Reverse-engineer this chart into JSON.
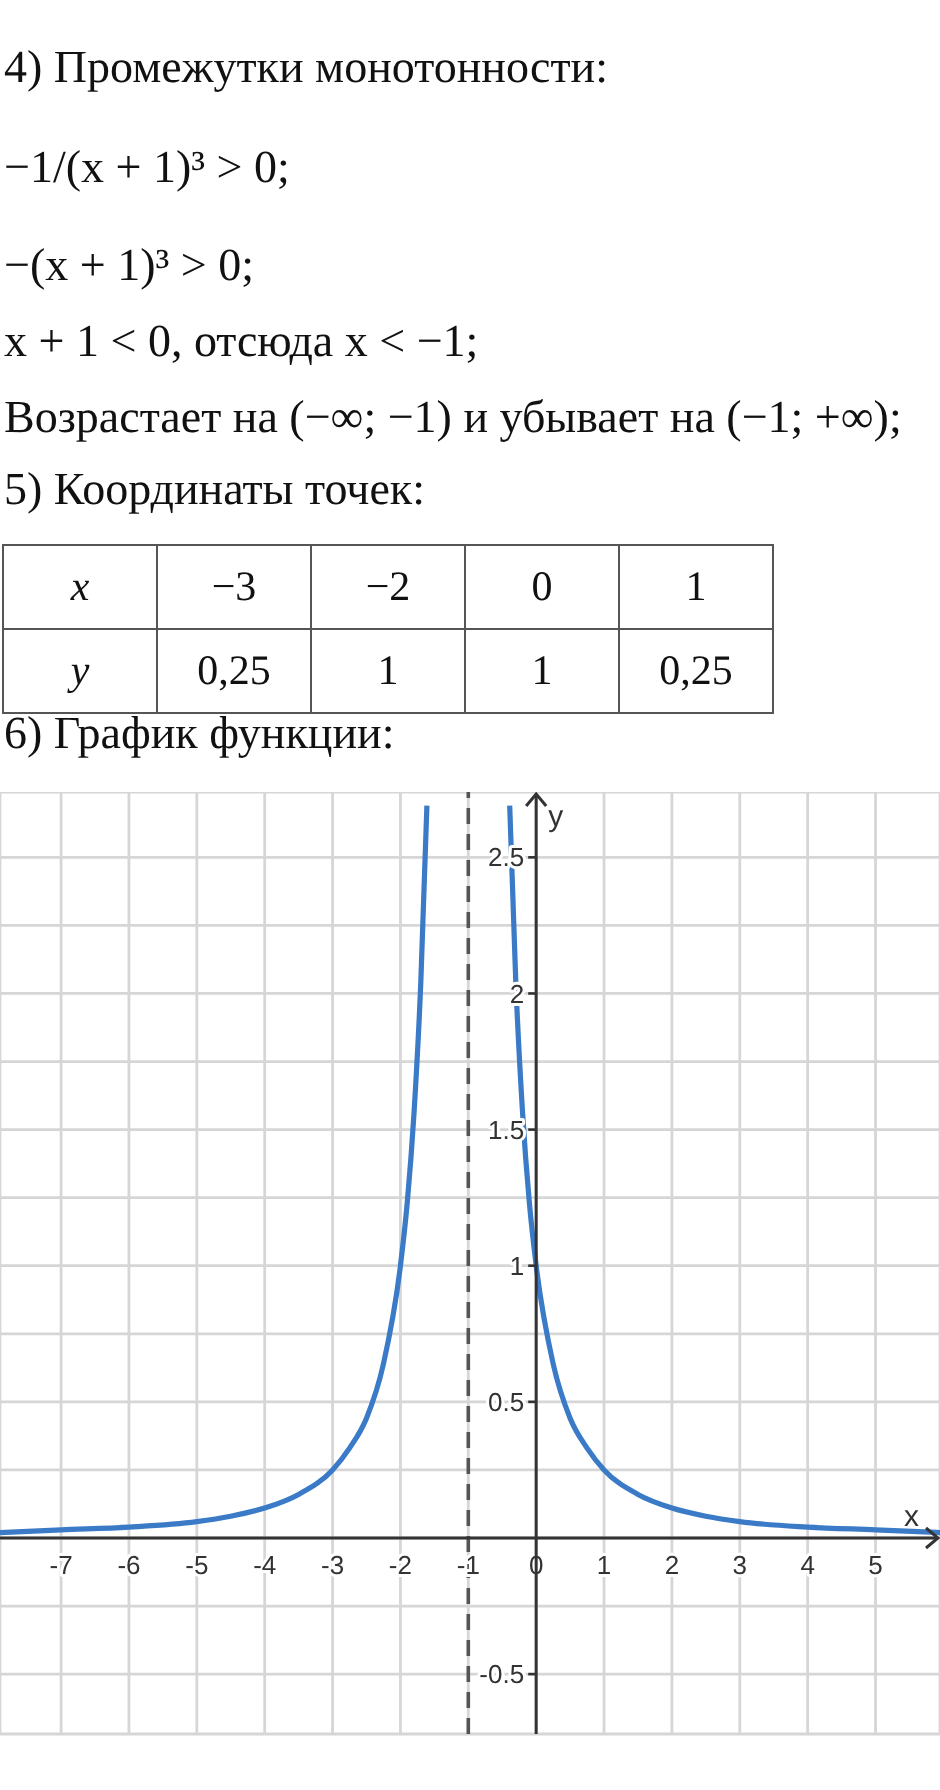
{
  "chart_data": [
    {
      "type": "other",
      "title": "4) Промежутки монотонности:",
      "annotations": [
        "−1/(x + 1)³ > 0;",
        "−(x + 1)³ > 0;",
        "x + 1 < 0, отсюда x < −1;",
        "Возрастает на (−∞; −1) и убывает на (−1; +∞);"
      ]
    },
    {
      "type": "other",
      "title": "5) Координаты точек:",
      "annotations": [
        "x",
        "−3",
        "−2",
        "0",
        "1",
        "y",
        "0,25",
        "1",
        "1",
        "0,25"
      ]
    },
    {
      "type": "line",
      "title": "6) График функции:",
      "xlabel": "x",
      "ylabel": "y",
      "x": [
        -7.9,
        -7,
        -6,
        -5,
        -4.5,
        -4,
        -3.5,
        -3,
        -2.75,
        -2.5,
        -2.25,
        -2,
        -1.9,
        -1.8,
        -1.7,
        -1.61,
        -1,
        -0.39,
        -0.3,
        -0.2,
        -0.1,
        0,
        0.25,
        0.5,
        0.75,
        1,
        1.5,
        2,
        2.5,
        3,
        4,
        5,
        5.95
      ],
      "series": [
        {
          "color": "#3a7ac7",
          "values": [
            0.02,
            0.03,
            0.04,
            0.06,
            0.08,
            0.11,
            0.16,
            0.25,
            0.33,
            0.44,
            0.64,
            1,
            1.23,
            1.56,
            2.04,
            2.69,
            null,
            2.69,
            2.04,
            1.56,
            1.23,
            1,
            0.64,
            0.44,
            0.33,
            0.25,
            0.16,
            0.11,
            0.08,
            0.06,
            0.04,
            0.03,
            0.02
          ]
        }
      ],
      "xlim": [
        -7.9,
        5.95
      ],
      "ylim": [
        -0.72,
        2.74
      ],
      "xticks": [
        -7,
        -6,
        -5,
        -4,
        -3,
        -2,
        -1,
        0,
        1,
        2,
        3,
        4,
        5
      ],
      "yticks": [
        -0.5,
        {
          "value": -0.25,
          "label": null
        },
        {
          "value": 0,
          "label": null
        },
        {
          "value": 0.25,
          "label": null
        },
        0.5,
        {
          "value": 0.75,
          "label": null
        },
        1,
        {
          "value": 1.25,
          "label": null
        },
        1.5,
        {
          "value": 1.75,
          "label": null
        },
        2,
        {
          "value": 2.25,
          "label": null
        },
        2.5
      ],
      "grid": true,
      "ref_lines": [
        {
          "axis": "x",
          "value": -1,
          "color": "#555555",
          "line_style": "dashed"
        }
      ]
    }
  ]
}
